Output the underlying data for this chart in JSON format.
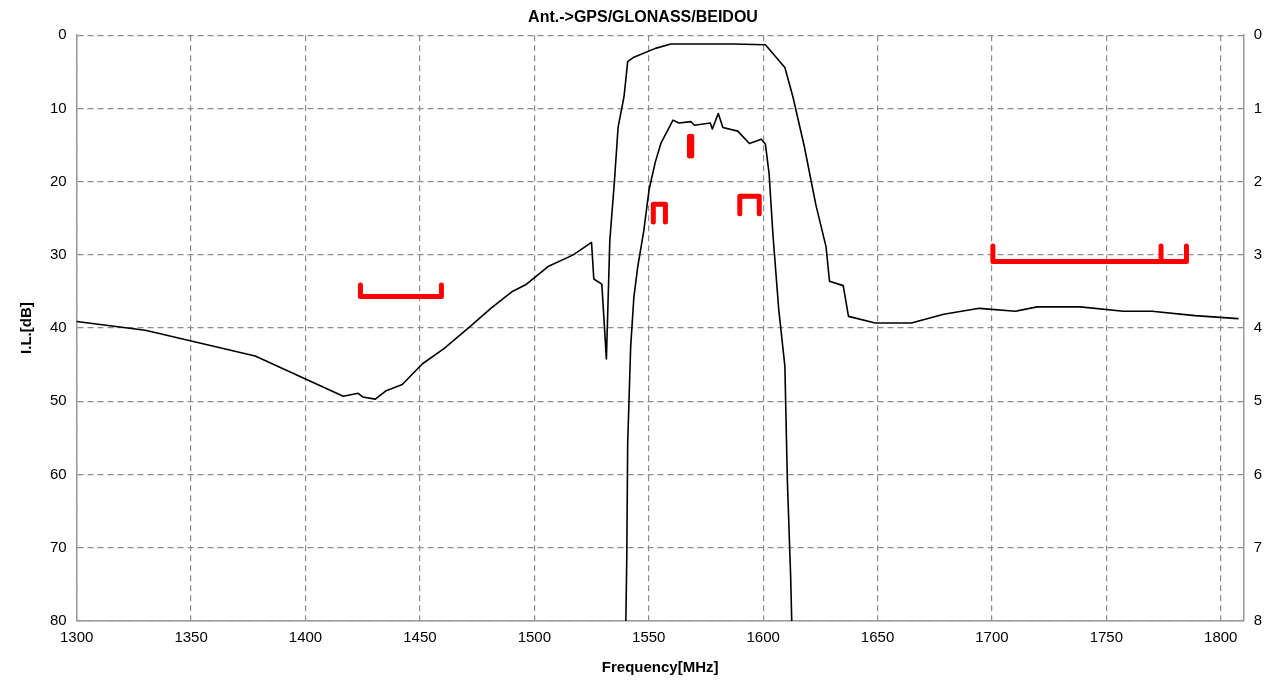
{
  "chart_data": {
    "type": "line",
    "title": "Ant.->GPS/GLONASS/BEIDOU",
    "xlabel": "Frequency[MHz]",
    "ylabel": "I.L.[dB]",
    "xlim": [
      1300,
      1810
    ],
    "xticks": [
      1300,
      1350,
      1400,
      1450,
      1500,
      1550,
      1600,
      1650,
      1700,
      1750,
      1800
    ],
    "ylim": [
      80,
      0
    ],
    "yticks": [
      0,
      10,
      20,
      30,
      40,
      50,
      60,
      70,
      80
    ],
    "y2lim": [
      8,
      0
    ],
    "y2ticks": [
      0,
      1,
      2,
      3,
      4,
      5,
      6,
      7,
      8
    ],
    "grid": true,
    "legend": false,
    "marker": "none",
    "series": [
      {
        "color": "#000000",
        "x": [
          1300,
          1330,
          1378,
          1416.5,
          1423,
          1425,
          1430.5,
          1435,
          1442.3,
          1451,
          1460.5,
          1471.5,
          1481,
          1490.4,
          1496.6,
          1506,
          1517,
          1525,
          1526,
          1529.5,
          1531.5,
          1533,
          1535,
          1536.6,
          1539.2,
          1540.8,
          1543.5,
          1552.9,
          1559.7,
          1587,
          1601,
          1609.5,
          1613,
          1618,
          1623,
          1627.5,
          1629,
          1635,
          1637.3,
          1649,
          1664.8,
          1678.9,
          1694.5,
          1710.3,
          1719.7,
          1738.6,
          1757.4,
          1770,
          1788.7,
          1807.5
        ],
        "values": [
          39.1,
          40.3,
          43.8,
          49.3,
          48.9,
          49.4,
          49.7,
          48.6,
          47.7,
          44.9,
          42.8,
          39.9,
          37.3,
          35,
          34,
          31.6,
          30,
          28.3,
          33.3,
          34,
          44.2,
          28,
          20,
          12.6,
          8.4,
          3.6,
          3,
          1.8,
          1.2,
          1.2,
          1.3,
          4.4,
          8.4,
          15.2,
          23.1,
          28.9,
          33.6,
          34.2,
          38.4,
          39.3,
          39.3,
          38.1,
          37.3,
          37.7,
          37.1,
          37.1,
          37.7,
          37.7,
          38.3,
          38.7
        ]
      },
      {
        "color": "#000000",
        "axis": "y2",
        "x": [
          1540,
          1540.4,
          1540.8,
          1542.1,
          1543.5,
          1545.2,
          1547.8,
          1550.2,
          1552.9,
          1555.4,
          1560.6,
          1563.2,
          1568.4,
          1570,
          1576.9,
          1577.8,
          1580.4,
          1582.4,
          1588.9,
          1594,
          1599.2,
          1601,
          1602.6,
          1604.3,
          1606.8,
          1609.5,
          1610.6,
          1612,
          1612.5
        ],
        "values": [
          8,
          7.16,
          5.58,
          4.26,
          3.58,
          3.16,
          2.68,
          2.1,
          1.73,
          1.47,
          1.16,
          1.2,
          1.18,
          1.23,
          1.2,
          1.28,
          1.07,
          1.26,
          1.31,
          1.48,
          1.42,
          1.49,
          1.89,
          2.73,
          3.74,
          4.52,
          6.1,
          7.37,
          8
        ]
      },
      {
        "color": "#ff0000",
        "x": [
          1424,
          1424,
          1459.4,
          1459.4,
          null,
          1700.4,
          1700.4,
          1785,
          1785,
          null,
          1773.9,
          1773.9,
          null,
          1552,
          1552,
          1557.3,
          1557.3,
          null,
          1567.8,
          1567.8,
          1568.8,
          1568.8,
          null,
          1589.8,
          1589.8,
          1598.3,
          1598.3
        ],
        "values": [
          34.1,
          35.7,
          35.7,
          34.1,
          null,
          28.8,
          30.9,
          30.9,
          28.8,
          null,
          30.9,
          28.8,
          null,
          25.5,
          23.1,
          23.1,
          25.5,
          null,
          16.5,
          13.8,
          13.8,
          16.5,
          null,
          24.4,
          22,
          22,
          24.4
        ]
      }
    ]
  }
}
